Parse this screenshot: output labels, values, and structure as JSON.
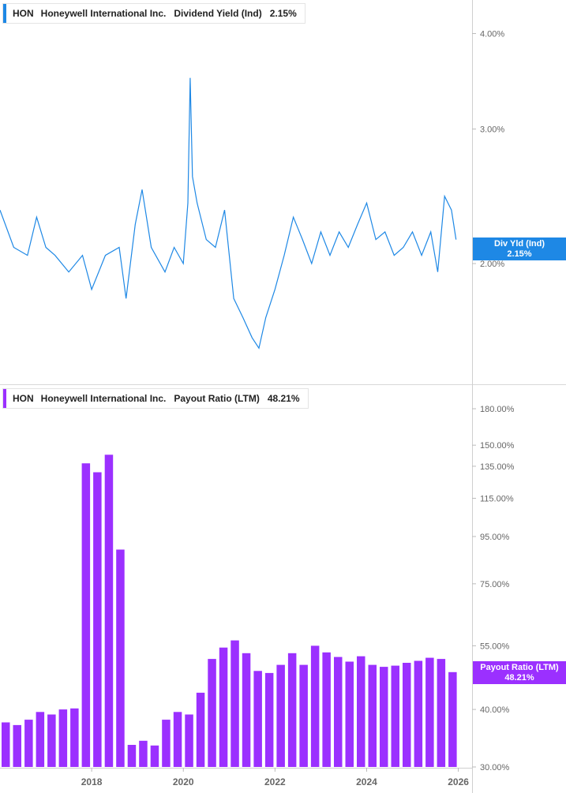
{
  "colors": {
    "yield": "#1e88e5",
    "payout": "#9b30ff",
    "axis_text": "#666666",
    "tick": "#bbbbbb"
  },
  "top_legend": {
    "ticker": "HON",
    "company": "Honeywell International Inc.",
    "metric": "Dividend Yield (Ind)",
    "value": "2.15%"
  },
  "bottom_legend": {
    "ticker": "HON",
    "company": "Honeywell International Inc.",
    "metric": "Payout Ratio (LTM)",
    "value": "48.21%"
  },
  "top_tag": {
    "label": "Div Yld (Ind)",
    "value": "2.15%"
  },
  "bottom_tag": {
    "label": "Payout Ratio (LTM)",
    "value": "48.21%"
  },
  "chart_data": [
    {
      "type": "line",
      "title": "Dividend Yield (Ind)",
      "series_name": "Dividend Yield (Ind)",
      "y_scale": "log",
      "y_ticks": [
        "4.00%",
        "3.00%",
        "2.00%"
      ],
      "y_tick_values": [
        4.0,
        3.0,
        2.0
      ],
      "ylim": [
        1.5,
        4.2
      ],
      "xlim": [
        2016.0,
        2026.3
      ],
      "x": [
        2016.0,
        2016.3,
        2016.6,
        2016.8,
        2017.0,
        2017.2,
        2017.5,
        2017.8,
        2018.0,
        2018.3,
        2018.6,
        2018.75,
        2018.95,
        2019.1,
        2019.3,
        2019.6,
        2019.8,
        2020.0,
        2020.1,
        2020.15,
        2020.2,
        2020.3,
        2020.5,
        2020.7,
        2020.9,
        2021.1,
        2021.3,
        2021.5,
        2021.65,
        2021.8,
        2022.0,
        2022.2,
        2022.4,
        2022.6,
        2022.8,
        2023.0,
        2023.2,
        2023.4,
        2023.6,
        2023.8,
        2024.0,
        2024.2,
        2024.4,
        2024.6,
        2024.8,
        2025.0,
        2025.2,
        2025.4,
        2025.55,
        2025.7,
        2025.85,
        2025.95
      ],
      "y": [
        2.35,
        2.1,
        2.05,
        2.3,
        2.1,
        2.05,
        1.95,
        2.05,
        1.85,
        2.05,
        2.1,
        1.8,
        2.25,
        2.5,
        2.1,
        1.95,
        2.1,
        2.0,
        2.4,
        3.5,
        2.6,
        2.4,
        2.15,
        2.1,
        2.35,
        1.8,
        1.7,
        1.6,
        1.55,
        1.7,
        1.85,
        2.05,
        2.3,
        2.15,
        2.0,
        2.2,
        2.05,
        2.2,
        2.1,
        2.25,
        2.4,
        2.15,
        2.2,
        2.05,
        2.1,
        2.2,
        2.05,
        2.2,
        1.95,
        2.45,
        2.35,
        2.15
      ]
    },
    {
      "type": "bar",
      "title": "Payout Ratio (LTM)",
      "series_name": "Payout Ratio (LTM)",
      "y_scale": "log",
      "y_ticks": [
        "180.00%",
        "150.00%",
        "135.00%",
        "115.00%",
        "95.00%",
        "75.00%",
        "55.00%",
        "40.00%",
        "30.00%"
      ],
      "y_tick_values": [
        180,
        150,
        135,
        115,
        95,
        75,
        55,
        40,
        30
      ],
      "ylim": [
        30,
        180
      ],
      "x_ticks": [
        "2018",
        "2020",
        "2022",
        "2024",
        "2026"
      ],
      "x_tick_values": [
        2018,
        2020,
        2022,
        2024,
        2026
      ],
      "xlim": [
        2016.0,
        2026.3
      ],
      "x": [
        2016.0,
        2016.25,
        2016.5,
        2016.75,
        2017.0,
        2017.25,
        2017.5,
        2017.75,
        2018.0,
        2018.25,
        2018.5,
        2018.75,
        2019.0,
        2019.25,
        2019.5,
        2019.75,
        2020.0,
        2020.25,
        2020.5,
        2020.75,
        2021.0,
        2021.25,
        2021.5,
        2021.75,
        2022.0,
        2022.25,
        2022.5,
        2022.75,
        2023.0,
        2023.25,
        2023.5,
        2023.75,
        2024.0,
        2024.25,
        2024.5,
        2024.75,
        2025.0,
        2025.25,
        2025.5,
        2025.75
      ],
      "values": [
        37.5,
        37.0,
        38.0,
        39.5,
        39.0,
        40.0,
        40.2,
        137.0,
        131.0,
        143.0,
        89.0,
        33.5,
        34.2,
        33.4,
        38.0,
        39.5,
        39.0,
        43.5,
        51.5,
        54.5,
        56.5,
        53.0,
        48.5,
        48.0,
        50.0,
        53.0,
        50.0,
        55.0,
        53.2,
        52.0,
        50.8,
        52.2,
        50.0,
        49.5,
        49.8,
        50.5,
        51.0,
        51.8,
        51.5,
        48.21
      ]
    }
  ]
}
